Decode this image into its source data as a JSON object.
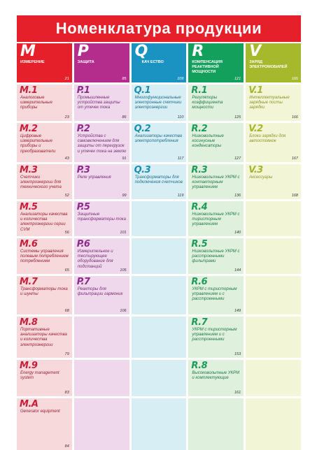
{
  "title": "Номенклатура продукции",
  "colors": {
    "title_bg": "#e5202b",
    "m": "#e5202b",
    "p": "#b52d8c",
    "q": "#1a92c2",
    "r": "#12a05c",
    "v": "#a6b82b"
  },
  "headers": [
    {
      "letter": "M",
      "name": "ИЗМЕРЕНИЕ",
      "page": "21",
      "color": "#e5202b"
    },
    {
      "letter": "P",
      "name": "ЗАЩИТА",
      "page": "85",
      "color": "#b52d8c"
    },
    {
      "letter": "Q",
      "name": "КАЧ ЕСТВО",
      "page": "109",
      "color": "#1a92c2"
    },
    {
      "letter": "R",
      "name": "КОМПЕНСАЦИЯ РЕАКТИВНОЙ МОЩНОСТИ",
      "page": "121",
      "color": "#12a05c"
    },
    {
      "letter": "V",
      "name": "Заряд электромобилей",
      "page": "165",
      "color": "#a6b82b"
    }
  ],
  "m": [
    {
      "code": "M.1",
      "name": "Аналоговые измерительные приборы",
      "page": "23"
    },
    {
      "code": "M.2",
      "name": "Цифровые измерительные приборы и преобразователи",
      "page": "43"
    },
    {
      "code": "M.3",
      "name": "Счетчики электроэнергии для технического учета",
      "page": "52"
    },
    {
      "code": "M.5",
      "name": "Анализаторы качества и количества электроэнергии серии CVM",
      "page": "56"
    },
    {
      "code": "M.6",
      "name": "Системы управления полевым потреблением потреблением",
      "page": "65"
    },
    {
      "code": "M.7",
      "name": "Трансформаторы тока и шунты",
      "page": "68"
    },
    {
      "code": "M.8",
      "name": "Портативные анализаторы качества и количества электроэнергии",
      "page": "79"
    },
    {
      "code": "M.9",
      "name": "Energy management system",
      "page": "83"
    },
    {
      "code": "M.A",
      "name": "Generator equipment",
      "page": "84"
    }
  ],
  "p": [
    {
      "code": "P.1",
      "name": "Промышленные устройства защиты от утечек тока",
      "page": "86"
    },
    {
      "code": "P.2",
      "name": "Устройства с самовключением для защиты от перегрузок и утечек тока на землю",
      "page": "91"
    },
    {
      "code": "P.3",
      "name": "Реле управления",
      "page": "99"
    },
    {
      "code": "P.5",
      "name": "Защитные трансформаторы тока",
      "page": "101"
    },
    {
      "code": "P.6",
      "name": "Измерительное и тестирующее оборудование для подстанций",
      "page": "105"
    },
    {
      "code": "P.7",
      "name": "Реакторы для фильтрации гармоник",
      "page": "106"
    }
  ],
  "q": [
    {
      "code": "Q.1",
      "name": "Многофункциональные электронные счетчики электроэнергии",
      "page": "110"
    },
    {
      "code": "Q.2",
      "name": "Анализаторы качества электропотребления",
      "page": "117"
    },
    {
      "code": "Q.3",
      "name": "Трансформаторы для подключения счетчиков",
      "page": "119"
    }
  ],
  "r": [
    {
      "code": "R.1",
      "name": "Регуляторы коэффициента мощности",
      "page": "125"
    },
    {
      "code": "R.2",
      "name": "Низковольтные косинусные конденсаторы",
      "page": "127"
    },
    {
      "code": "R.3",
      "name": "Низковольтные УКРМ с контакторным управлением",
      "page": "136"
    },
    {
      "code": "R.4",
      "name": "Низковольтные УКРМ с тиристорным управлением",
      "page": "140"
    },
    {
      "code": "R.5",
      "name": "Низковольтные УКРМ с расстроенными фильтрами",
      "page": "144"
    },
    {
      "code": "R.6",
      "name": "УКРМ с тиристорным управлением и с расстроенными",
      "page": "149"
    },
    {
      "code": "R.7",
      "name": "УКРМ с тиристорным управлением и с расстроенными",
      "page": "153"
    },
    {
      "code": "R.8",
      "name": "Высоковольтные УКРМ и комплектующие",
      "page": "161"
    }
  ],
  "v": [
    {
      "code": "V.1",
      "name": "Интеллектуальные зарядные посты зарядки",
      "page": "166"
    },
    {
      "code": "V.2",
      "name": "Блоки зарядки для автостоянок",
      "page": "167"
    },
    {
      "code": "V.3",
      "name": "Аксессуары",
      "page": "168"
    }
  ]
}
